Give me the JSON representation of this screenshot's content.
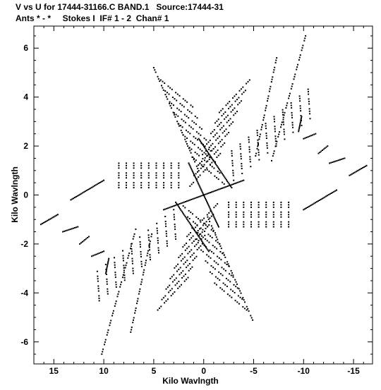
{
  "header": {
    "line1": "V vs U for 17444-31166.C BAND.1   Source:17444-31",
    "line2": "Ants * - *     Stokes I  IF# 1 - 2  Chan# 1"
  },
  "chart_data": {
    "type": "scatter",
    "title": "V vs U for 17444-31166.C BAND.1   Source:17444-31",
    "subtitle": "Ants * - *     Stokes I  IF# 1 - 2  Chan# 1",
    "xlabel": "Kilo Wavlngth",
    "ylabel": "Kilo Wavlngth",
    "xlim": [
      17.0,
      -16.9
    ],
    "ylim": [
      -6.9,
      6.9
    ],
    "x_reversed": true,
    "grid": false,
    "marker_color": "#000000",
    "xticks": [
      15,
      10,
      5,
      0,
      -5,
      -10,
      -15
    ],
    "yticks": [
      -6,
      -4,
      -2,
      0,
      2,
      4,
      6
    ],
    "xtick_labels": [
      "15",
      "10",
      "5",
      "0",
      "-5",
      "-10",
      "-15"
    ],
    "ytick_labels": [
      "-6",
      "-4",
      "-2",
      "0",
      "2",
      "4",
      "6"
    ],
    "series": [
      {
        "tracks": [
          {
            "x": [
              16.3,
              14.6
            ],
            "y": [
              -1.2,
              -0.8
            ],
            "dense": true
          },
          {
            "x": [
              14.1,
              12.6
            ],
            "y": [
              -1.5,
              -1.3
            ],
            "dense": true
          },
          {
            "x": [
              12.4,
              11.5
            ],
            "y": [
              -2.0,
              -1.7
            ],
            "dense": true
          },
          {
            "x": [
              11.2,
              10.0
            ],
            "y": [
              -2.5,
              -2.3
            ],
            "dense": true
          },
          {
            "x": [
              9.8,
              9.5
            ],
            "y": [
              -3.2,
              -2.6
            ],
            "dense": true
          },
          {
            "x": [
              -16.3,
              -14.6
            ],
            "y": [
              1.2,
              0.8
            ],
            "dense": true
          },
          {
            "x": [
              -14.1,
              -12.6
            ],
            "y": [
              1.5,
              1.3
            ],
            "dense": true
          },
          {
            "x": [
              -12.4,
              -11.5
            ],
            "y": [
              2.0,
              1.7
            ],
            "dense": true
          },
          {
            "x": [
              -11.2,
              -10.0
            ],
            "y": [
              2.5,
              2.3
            ],
            "dense": true
          },
          {
            "x": [
              -9.8,
              -9.5
            ],
            "y": [
              3.2,
              2.6
            ],
            "dense": true
          },
          {
            "x": [
              10.0,
              13.3
            ],
            "y": [
              0.6,
              -0.2
            ],
            "dense": true
          },
          {
            "x": [
              -10.0,
              -13.3
            ],
            "y": [
              -0.6,
              0.2
            ],
            "dense": true
          },
          {
            "x": [
              10.2,
              6.8
            ],
            "y": [
              -6.5,
              -1.4
            ]
          },
          {
            "x": [
              7.3,
              5.2
            ],
            "y": [
              -5.6,
              -1.6
            ]
          },
          {
            "x": [
              -10.2,
              -6.8
            ],
            "y": [
              6.5,
              1.4
            ]
          },
          {
            "x": [
              -7.3,
              -5.2
            ],
            "y": [
              5.6,
              1.6
            ]
          },
          {
            "x": [
              5.0,
              0.4
            ],
            "y": [
              5.2,
              0.9
            ]
          },
          {
            "x": [
              -0.4,
              -5.0
            ],
            "y": [
              -0.9,
              -5.2
            ]
          },
          {
            "x": [
              0.5,
              -2.8
            ],
            "y": [
              2.3,
              0.3
            ],
            "dense": true
          },
          {
            "x": [
              -0.5,
              2.8
            ],
            "y": [
              -2.3,
              -0.3
            ],
            "dense": true
          },
          {
            "x": [
              -1.5,
              1.5
            ],
            "y": [
              -1.3,
              1.3
            ],
            "dense": true
          },
          {
            "x": [
              -4.0,
              4.0
            ],
            "y": [
              0.6,
              -0.6
            ],
            "dense": true
          }
        ]
      }
    ],
    "families": [
      {
        "u0": 4.3,
        "v0": 4.7,
        "du": -0.45,
        "dv": -0.45,
        "n": 8,
        "su": -3.2,
        "sv": -1.1
      },
      {
        "u0": -4.3,
        "v0": -4.7,
        "du": 0.45,
        "dv": 0.45,
        "n": 8,
        "su": 3.2,
        "sv": 1.1
      },
      {
        "u0": 4.6,
        "v0": -4.7,
        "du": -0.42,
        "dv": 0.43,
        "n": 8,
        "su": -3.2,
        "sv": 1.4
      },
      {
        "u0": -4.6,
        "v0": 4.7,
        "du": 0.42,
        "dv": -0.43,
        "n": 8,
        "su": 3.2,
        "sv": -1.4
      },
      {
        "u0": -2.8,
        "v0": 1.8,
        "du": -0.85,
        "dv": 0.28,
        "n": 10,
        "su": -0.2,
        "sv": -1.2
      },
      {
        "u0": 2.8,
        "v0": -1.8,
        "du": 0.85,
        "dv": -0.28,
        "n": 10,
        "su": 0.2,
        "sv": 1.2
      },
      {
        "u0": -2.5,
        "v0": -0.3,
        "du": -0.75,
        "dv": 0.0,
        "n": 9,
        "su": 0.0,
        "sv": -1.0
      },
      {
        "u0": 2.5,
        "v0": 0.3,
        "du": 0.75,
        "dv": 0.0,
        "n": 9,
        "su": 0.0,
        "sv": 1.0
      }
    ]
  }
}
